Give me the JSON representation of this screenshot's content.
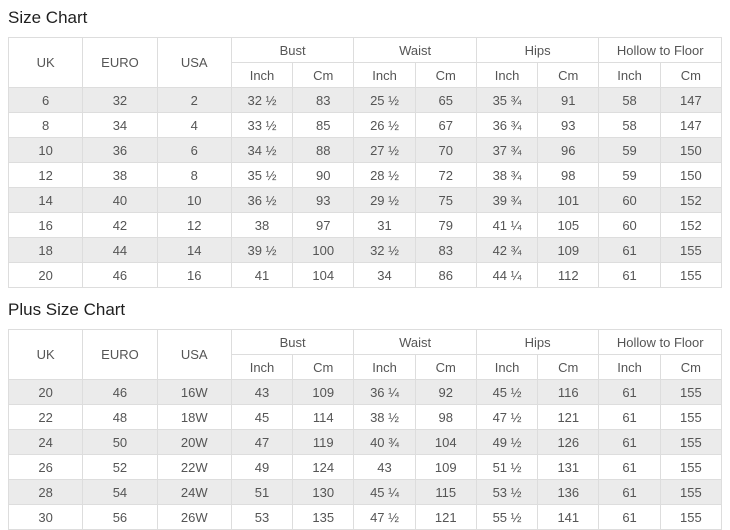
{
  "charts": [
    {
      "title": "Size Chart",
      "size_columns": [
        "UK",
        "EURO",
        "USA"
      ],
      "measurement_groups": [
        "Bust",
        "Waist",
        "Hips",
        "Hollow to Floor"
      ],
      "unit_labels": [
        "Inch",
        "Cm"
      ],
      "rows": [
        [
          "6",
          "32",
          "2",
          "32 ½",
          "83",
          "25 ½",
          "65",
          "35 ¾",
          "91",
          "58",
          "147"
        ],
        [
          "8",
          "34",
          "4",
          "33 ½",
          "85",
          "26 ½",
          "67",
          "36 ¾",
          "93",
          "58",
          "147"
        ],
        [
          "10",
          "36",
          "6",
          "34 ½",
          "88",
          "27 ½",
          "70",
          "37 ¾",
          "96",
          "59",
          "150"
        ],
        [
          "12",
          "38",
          "8",
          "35 ½",
          "90",
          "28 ½",
          "72",
          "38 ¾",
          "98",
          "59",
          "150"
        ],
        [
          "14",
          "40",
          "10",
          "36 ½",
          "93",
          "29 ½",
          "75",
          "39 ¾",
          "101",
          "60",
          "152"
        ],
        [
          "16",
          "42",
          "12",
          "38",
          "97",
          "31",
          "79",
          "41 ¼",
          "105",
          "60",
          "152"
        ],
        [
          "18",
          "44",
          "14",
          "39 ½",
          "100",
          "32 ½",
          "83",
          "42 ¾",
          "109",
          "61",
          "155"
        ],
        [
          "20",
          "46",
          "16",
          "41",
          "104",
          "34",
          "86",
          "44 ¼",
          "112",
          "61",
          "155"
        ]
      ]
    },
    {
      "title": "Plus Size Chart",
      "size_columns": [
        "UK",
        "EURO",
        "USA"
      ],
      "measurement_groups": [
        "Bust",
        "Waist",
        "Hips",
        "Hollow to Floor"
      ],
      "unit_labels": [
        "Inch",
        "Cm"
      ],
      "rows": [
        [
          "20",
          "46",
          "16W",
          "43",
          "109",
          "36 ¼",
          "92",
          "45 ½",
          "116",
          "61",
          "155"
        ],
        [
          "22",
          "48",
          "18W",
          "45",
          "114",
          "38 ½",
          "98",
          "47 ½",
          "121",
          "61",
          "155"
        ],
        [
          "24",
          "50",
          "20W",
          "47",
          "119",
          "40 ¾",
          "104",
          "49 ½",
          "126",
          "61",
          "155"
        ],
        [
          "26",
          "52",
          "22W",
          "49",
          "124",
          "43",
          "109",
          "51 ½",
          "131",
          "61",
          "155"
        ],
        [
          "28",
          "54",
          "24W",
          "51",
          "130",
          "45 ¼",
          "115",
          "53 ½",
          "136",
          "61",
          "155"
        ],
        [
          "30",
          "56",
          "26W",
          "53",
          "135",
          "47 ½",
          "121",
          "55 ½",
          "141",
          "61",
          "155"
        ]
      ]
    }
  ],
  "colors": {
    "row_shaded": "#ebebeb",
    "border": "#dddddd",
    "text": "#555555",
    "title": "#1f1f1f"
  }
}
